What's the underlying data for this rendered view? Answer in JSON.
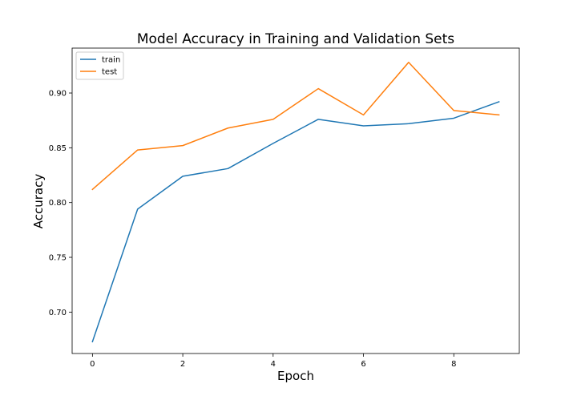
{
  "chart_data": {
    "type": "line",
    "title": "Model Accuracy in Training and Validation Sets",
    "xlabel": "Epoch",
    "ylabel": "Accuracy",
    "x": [
      0,
      1,
      2,
      3,
      4,
      5,
      6,
      7,
      8,
      9
    ],
    "xlim": [
      -0.45,
      9.45
    ],
    "ylim": [
      0.6622,
      0.941
    ],
    "xticks": [
      0,
      2,
      4,
      6,
      8
    ],
    "yticks": [
      0.7,
      0.75,
      0.8,
      0.85,
      0.9
    ],
    "ytick_labels": [
      "0.70",
      "0.75",
      "0.80",
      "0.85",
      "0.90"
    ],
    "grid": false,
    "legend_position": "top-left",
    "series": [
      {
        "name": "train",
        "color": "#1f77b4",
        "values": [
          0.673,
          0.794,
          0.824,
          0.831,
          0.854,
          0.876,
          0.87,
          0.872,
          0.877,
          0.892
        ]
      },
      {
        "name": "test",
        "color": "#ff7f0e",
        "values": [
          0.812,
          0.848,
          0.852,
          0.868,
          0.876,
          0.904,
          0.88,
          0.928,
          0.884,
          0.88
        ]
      }
    ]
  }
}
